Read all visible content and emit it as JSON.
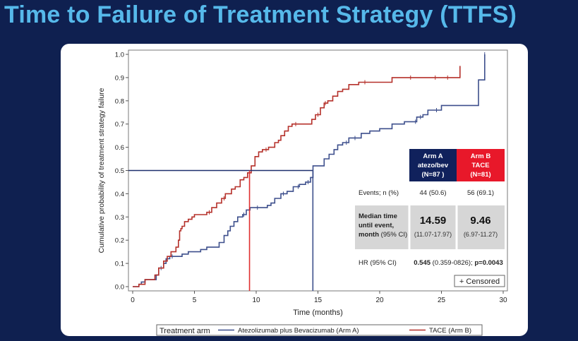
{
  "slide": {
    "title": "Time to Failure of Treatment Strategy (TTFS)"
  },
  "chart_data": {
    "type": "line",
    "subtype": "kaplan-meier cumulative incidence",
    "xlabel": "Time (months)",
    "ylabel": "Cumulative probability of treatment strategy failure",
    "xlim": [
      0,
      30
    ],
    "ylim": [
      0,
      1
    ],
    "x_ticks": [
      0,
      5,
      10,
      15,
      20,
      25,
      30
    ],
    "y_ticks": [
      "0.0",
      "0.1",
      "0.2",
      "0.3",
      "0.4",
      "0.5",
      "0.6",
      "0.7",
      "0.8",
      "0.9",
      "1.0"
    ],
    "median_line": 0.5,
    "censor_label": "+ Censored",
    "legend": {
      "title": "Treatment arm",
      "entries": [
        {
          "name": "Atezolizumab plus Bevacizumab (Arm A)",
          "color": "#3d4f8c"
        },
        {
          "name": "TACE (Arm B)",
          "color": "#b5302a"
        }
      ]
    },
    "series": [
      {
        "name": "Atezolizumab plus Bevacizumab (Arm A)",
        "color": "#3d4f8c",
        "median": 14.59,
        "x": [
          0,
          0.5,
          0.7,
          1.0,
          1.9,
          2.1,
          2.5,
          2.7,
          3.0,
          4.0,
          4.5,
          5.5,
          6.0,
          7.0,
          7.4,
          7.7,
          7.9,
          8.2,
          8.5,
          8.9,
          9.2,
          9.5,
          10.5,
          10.9,
          11.2,
          11.5,
          12.0,
          12.5,
          13.0,
          13.5,
          14.0,
          14.4,
          14.6,
          15.5,
          15.9,
          16.3,
          16.6,
          17.0,
          17.5,
          18.5,
          19.2,
          20.0,
          21.0,
          22.0,
          23.0,
          23.5,
          23.9,
          25.0,
          26.5,
          28.0,
          28.5
        ],
        "y": [
          0,
          0.01,
          0.02,
          0.03,
          0.05,
          0.08,
          0.1,
          0.12,
          0.13,
          0.14,
          0.15,
          0.16,
          0.17,
          0.19,
          0.22,
          0.24,
          0.26,
          0.28,
          0.3,
          0.31,
          0.33,
          0.34,
          0.34,
          0.35,
          0.36,
          0.38,
          0.4,
          0.41,
          0.43,
          0.44,
          0.45,
          0.47,
          0.52,
          0.55,
          0.57,
          0.59,
          0.61,
          0.62,
          0.64,
          0.66,
          0.67,
          0.68,
          0.7,
          0.71,
          0.73,
          0.74,
          0.76,
          0.78,
          0.78,
          0.89,
          1.0
        ],
        "censored_x": [
          2.3,
          3.2,
          9.0,
          10.1,
          12.2,
          13.4,
          14.2,
          17.3,
          18.0,
          22.9,
          23.3,
          24.6,
          28.5
        ]
      },
      {
        "name": "TACE (Arm B)",
        "color": "#b5302a",
        "median": 9.46,
        "x": [
          0,
          0.5,
          1.0,
          1.8,
          2.1,
          2.5,
          2.8,
          3.1,
          3.5,
          3.7,
          3.8,
          3.9,
          4.0,
          4.2,
          4.5,
          4.8,
          5.0,
          6.0,
          6.4,
          6.8,
          7.2,
          7.5,
          8.0,
          8.3,
          8.7,
          9.0,
          9.3,
          9.6,
          9.9,
          10.2,
          10.5,
          11.0,
          11.5,
          11.8,
          12.0,
          12.3,
          12.6,
          12.9,
          13.5,
          14.5,
          14.8,
          15.2,
          15.5,
          15.8,
          16.2,
          16.6,
          17.0,
          17.5,
          18.3,
          19.5,
          21.0,
          26.5
        ],
        "y": [
          0,
          0.01,
          0.03,
          0.05,
          0.08,
          0.11,
          0.13,
          0.15,
          0.17,
          0.2,
          0.24,
          0.25,
          0.26,
          0.28,
          0.29,
          0.3,
          0.31,
          0.32,
          0.34,
          0.36,
          0.38,
          0.4,
          0.42,
          0.43,
          0.46,
          0.47,
          0.49,
          0.52,
          0.56,
          0.58,
          0.59,
          0.6,
          0.62,
          0.63,
          0.65,
          0.67,
          0.69,
          0.7,
          0.7,
          0.72,
          0.74,
          0.77,
          0.79,
          0.8,
          0.82,
          0.84,
          0.85,
          0.87,
          0.88,
          0.88,
          0.9,
          0.95
        ],
        "censored_x": [
          6.2,
          7.4,
          10.8,
          13.2,
          15.0,
          15.6,
          18.8,
          22.5,
          24.5,
          25.5
        ]
      }
    ]
  },
  "summary_table": {
    "headers": [
      {
        "lines": [
          "Arm A",
          "atezo/bev",
          "(N=87 )"
        ],
        "color": "#10215c"
      },
      {
        "lines": [
          "Arm B",
          "TACE",
          "(N=81)"
        ],
        "color": "#e8182a"
      }
    ],
    "rows": [
      {
        "label": "Events; n (%)",
        "a": "44 (50.6)",
        "b": "56 (69.1)"
      },
      {
        "label_lines": [
          "Median time",
          "until event,"
        ],
        "label_last": "month",
        "label_last_suffix": " (95% CI)",
        "a_main": "14.59",
        "a_ci": "(11.07-17.97)",
        "b_main": "9.46",
        "b_ci": "(6.97-11.27)"
      },
      {
        "label": "HR (95% CI)",
        "hr_value": "0.545",
        "hr_ci": " (0.359-0826); ",
        "hr_p": "p=0.0043"
      }
    ]
  }
}
